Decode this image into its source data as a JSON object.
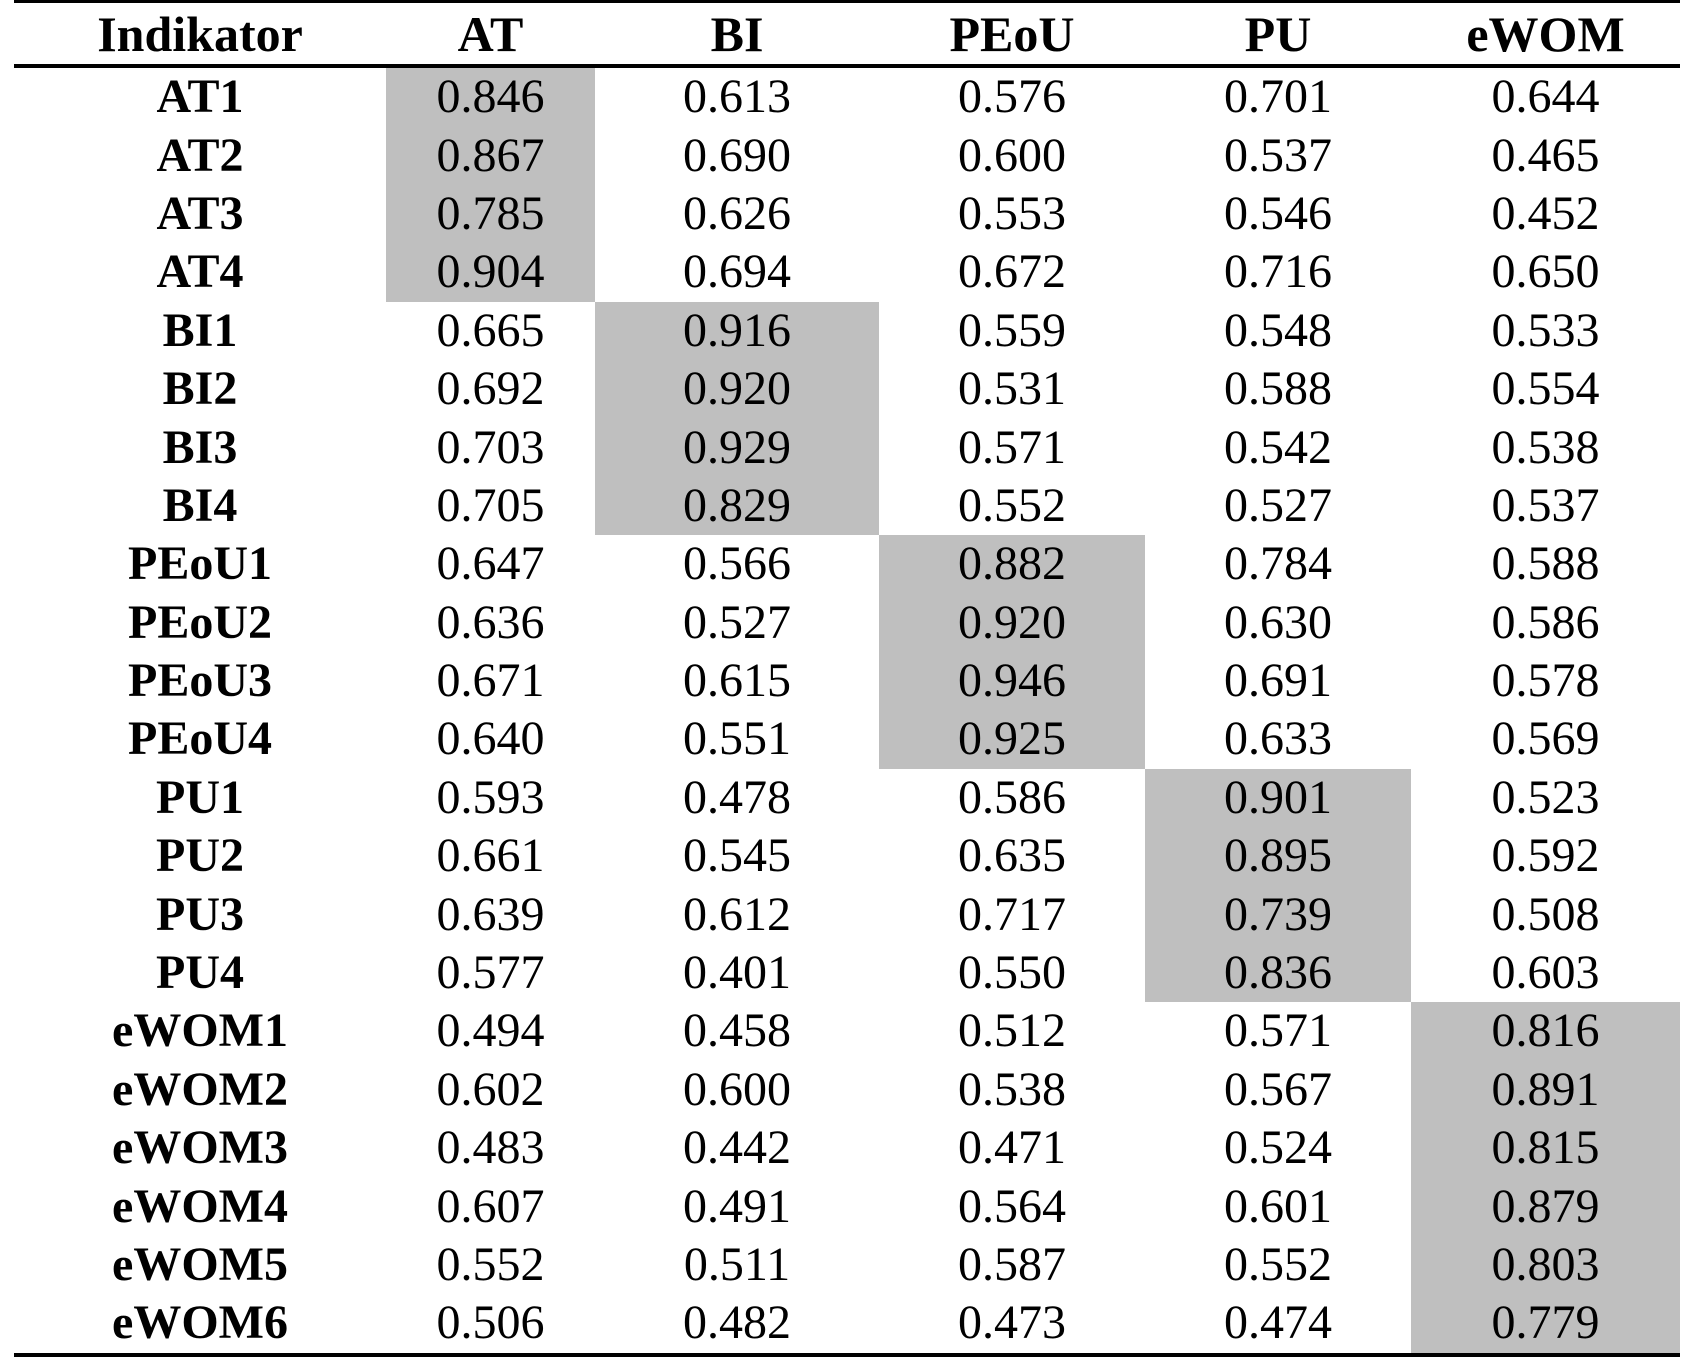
{
  "table": {
    "highlight_color": "#bfbfbf",
    "headers": [
      "Indikator",
      "AT",
      "BI",
      "PEoU",
      "PU",
      "eWOM"
    ],
    "rows": [
      {
        "label": "AT1",
        "values": [
          "0.846",
          "0.613",
          "0.576",
          "0.701",
          "0.644"
        ],
        "highlight_col": 0
      },
      {
        "label": "AT2",
        "values": [
          "0.867",
          "0.690",
          "0.600",
          "0.537",
          "0.465"
        ],
        "highlight_col": 0
      },
      {
        "label": "AT3",
        "values": [
          "0.785",
          "0.626",
          "0.553",
          "0.546",
          "0.452"
        ],
        "highlight_col": 0
      },
      {
        "label": "AT4",
        "values": [
          "0.904",
          "0.694",
          "0.672",
          "0.716",
          "0.650"
        ],
        "highlight_col": 0
      },
      {
        "label": "BI1",
        "values": [
          "0.665",
          "0.916",
          "0.559",
          "0.548",
          "0.533"
        ],
        "highlight_col": 1
      },
      {
        "label": "BI2",
        "values": [
          "0.692",
          "0.920",
          "0.531",
          "0.588",
          "0.554"
        ],
        "highlight_col": 1
      },
      {
        "label": "BI3",
        "values": [
          "0.703",
          "0.929",
          "0.571",
          "0.542",
          "0.538"
        ],
        "highlight_col": 1
      },
      {
        "label": "BI4",
        "values": [
          "0.705",
          "0.829",
          "0.552",
          "0.527",
          "0.537"
        ],
        "highlight_col": 1
      },
      {
        "label": "PEoU1",
        "values": [
          "0.647",
          "0.566",
          "0.882",
          "0.784",
          "0.588"
        ],
        "highlight_col": 2
      },
      {
        "label": "PEoU2",
        "values": [
          "0.636",
          "0.527",
          "0.920",
          "0.630",
          "0.586"
        ],
        "highlight_col": 2
      },
      {
        "label": "PEoU3",
        "values": [
          "0.671",
          "0.615",
          "0.946",
          "0.691",
          "0.578"
        ],
        "highlight_col": 2
      },
      {
        "label": "PEoU4",
        "values": [
          "0.640",
          "0.551",
          "0.925",
          "0.633",
          "0.569"
        ],
        "highlight_col": 2
      },
      {
        "label": "PU1",
        "values": [
          "0.593",
          "0.478",
          "0.586",
          "0.901",
          "0.523"
        ],
        "highlight_col": 3
      },
      {
        "label": "PU2",
        "values": [
          "0.661",
          "0.545",
          "0.635",
          "0.895",
          "0.592"
        ],
        "highlight_col": 3
      },
      {
        "label": "PU3",
        "values": [
          "0.639",
          "0.612",
          "0.717",
          "0.739",
          "0.508"
        ],
        "highlight_col": 3
      },
      {
        "label": "PU4",
        "values": [
          "0.577",
          "0.401",
          "0.550",
          "0.836",
          "0.603"
        ],
        "highlight_col": 3
      },
      {
        "label": "eWOM1",
        "values": [
          "0.494",
          "0.458",
          "0.512",
          "0.571",
          "0.816"
        ],
        "highlight_col": 4
      },
      {
        "label": "eWOM2",
        "values": [
          "0.602",
          "0.600",
          "0.538",
          "0.567",
          "0.891"
        ],
        "highlight_col": 4
      },
      {
        "label": "eWOM3",
        "values": [
          "0.483",
          "0.442",
          "0.471",
          "0.524",
          "0.815"
        ],
        "highlight_col": 4
      },
      {
        "label": "eWOM4",
        "values": [
          "0.607",
          "0.491",
          "0.564",
          "0.601",
          "0.879"
        ],
        "highlight_col": 4
      },
      {
        "label": "eWOM5",
        "values": [
          "0.552",
          "0.511",
          "0.587",
          "0.552",
          "0.803"
        ],
        "highlight_col": 4
      },
      {
        "label": "eWOM6",
        "values": [
          "0.506",
          "0.482",
          "0.473",
          "0.474",
          "0.779"
        ],
        "highlight_col": 4
      }
    ]
  }
}
